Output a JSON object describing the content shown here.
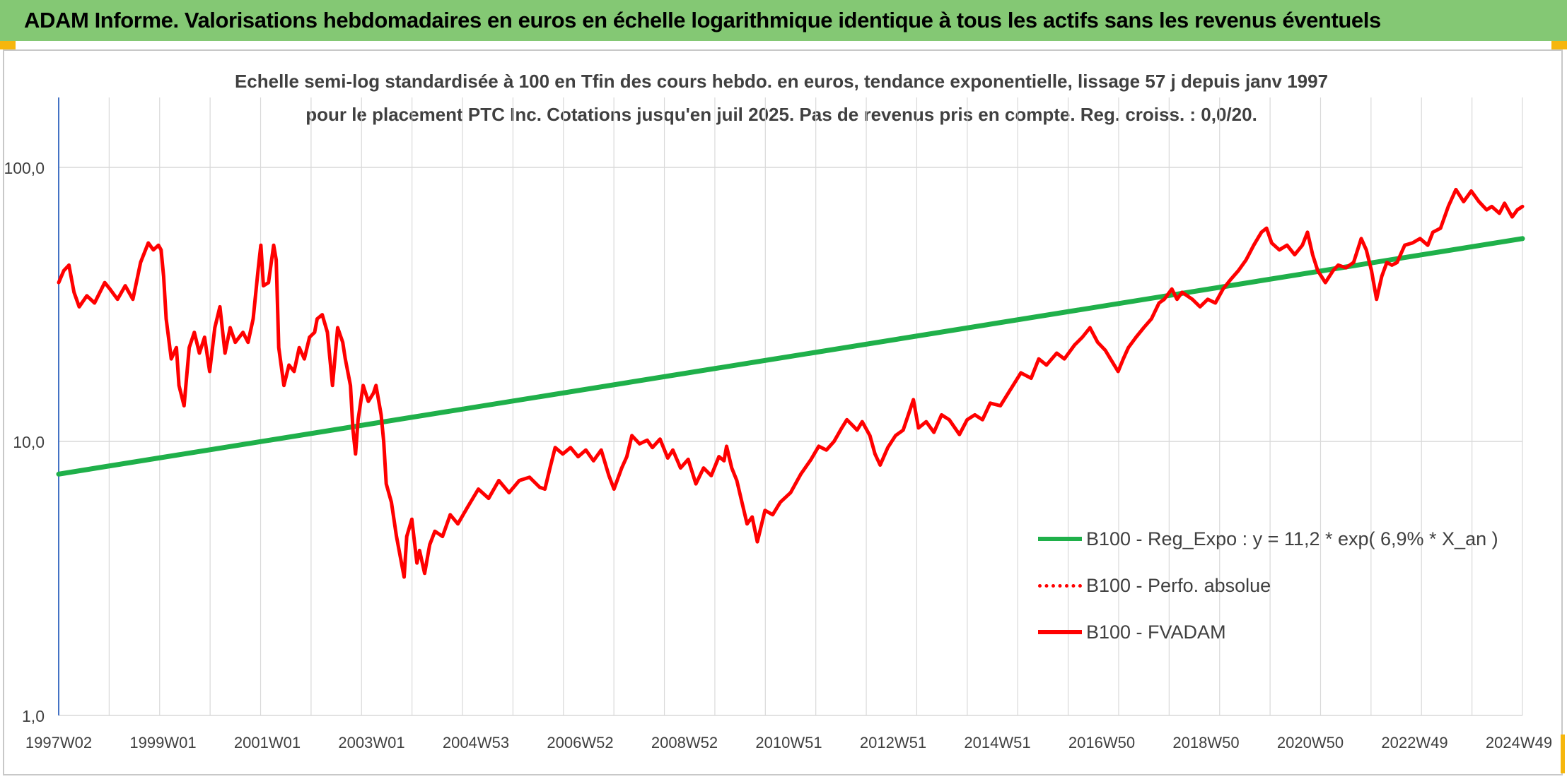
{
  "banner": {
    "title": "ADAM Informe. Valorisations hebdomadaires en euros en échelle logarithmique identique à tous les actifs sans les revenus éventuels"
  },
  "colors": {
    "banner": "#84c874",
    "accent_corner": "#f6b60d",
    "regression": "#1fb04a",
    "fvadam": "#ff0000",
    "grid": "#d9d9d9",
    "text": "#404040"
  },
  "chart_data": {
    "type": "line",
    "title": "Echelle semi-log standardisée à 100 en Tfin des cours hebdo. en euros, tendance exponentielle, lissage 57 j depuis janv 1997 pour le placement PTC Inc. Cotations jusqu'en juil 2025. Pas de revenus pris en compte. Reg. croiss. : 0,0/20.",
    "yscale": "log",
    "ylim": [
      1,
      180
    ],
    "y_ticks": [
      "1,0",
      "10,0",
      "100,0"
    ],
    "x_ticks": [
      "1997W02",
      "1999W01",
      "2001W01",
      "2003W01",
      "2004W53",
      "2006W52",
      "2008W52",
      "2010W51",
      "2012W51",
      "2014W51",
      "2016W50",
      "2018W50",
      "2020W50",
      "2022W49",
      "2024W49"
    ],
    "xlim": [
      1997.0,
      2025.6
    ],
    "grid": true,
    "legend_position": "bottom-right",
    "legend": [
      {
        "label": "B100 - Reg_Expo : y = 11,2 * exp( 6,9% *  X_an )",
        "style": "solid-green"
      },
      {
        "label": "B100 - Perfo. absolue",
        "style": "dotted-red"
      },
      {
        "label": "B100 - FVADAM",
        "style": "solid-red"
      }
    ],
    "series": [
      {
        "name": "B100 - Reg_Expo : y = 11,2 * exp( 6,9% *  X_an )",
        "color": "#1fb04a",
        "points": [
          [
            1997.0,
            7.6
          ],
          [
            2025.6,
            55.0
          ]
        ]
      },
      {
        "name": "B100 - FVADAM",
        "color": "#ff0000",
        "points": [
          [
            1997.0,
            38
          ],
          [
            1997.1,
            42
          ],
          [
            1997.2,
            44
          ],
          [
            1997.3,
            35
          ],
          [
            1997.4,
            31
          ],
          [
            1997.55,
            34
          ],
          [
            1997.7,
            32
          ],
          [
            1997.9,
            38
          ],
          [
            1998.0,
            36
          ],
          [
            1998.15,
            33
          ],
          [
            1998.3,
            37
          ],
          [
            1998.45,
            33
          ],
          [
            1998.6,
            45
          ],
          [
            1998.75,
            53
          ],
          [
            1998.85,
            50
          ],
          [
            1998.95,
            52
          ],
          [
            1999.0,
            50
          ],
          [
            1999.05,
            40
          ],
          [
            1999.1,
            28
          ],
          [
            1999.2,
            20
          ],
          [
            1999.3,
            22
          ],
          [
            1999.35,
            16
          ],
          [
            1999.45,
            13.5
          ],
          [
            1999.55,
            22
          ],
          [
            1999.65,
            25
          ],
          [
            1999.75,
            21
          ],
          [
            1999.85,
            24
          ],
          [
            1999.95,
            18
          ],
          [
            2000.05,
            26
          ],
          [
            2000.15,
            31
          ],
          [
            2000.25,
            21
          ],
          [
            2000.35,
            26
          ],
          [
            2000.45,
            23
          ],
          [
            2000.6,
            25
          ],
          [
            2000.7,
            23
          ],
          [
            2000.8,
            28
          ],
          [
            2000.9,
            43
          ],
          [
            2000.95,
            52
          ],
          [
            2001.0,
            37
          ],
          [
            2001.1,
            38
          ],
          [
            2001.2,
            52
          ],
          [
            2001.25,
            46
          ],
          [
            2001.3,
            22
          ],
          [
            2001.4,
            16
          ],
          [
            2001.5,
            19
          ],
          [
            2001.6,
            18
          ],
          [
            2001.7,
            22
          ],
          [
            2001.8,
            20
          ],
          [
            2001.9,
            24
          ],
          [
            2002.0,
            25
          ],
          [
            2002.05,
            28
          ],
          [
            2002.15,
            29
          ],
          [
            2002.25,
            25
          ],
          [
            2002.35,
            16
          ],
          [
            2002.45,
            26
          ],
          [
            2002.55,
            23
          ],
          [
            2002.6,
            20
          ],
          [
            2002.7,
            16
          ],
          [
            2002.75,
            11
          ],
          [
            2002.8,
            9
          ],
          [
            2002.85,
            12
          ],
          [
            2002.95,
            16
          ],
          [
            2003.05,
            14
          ],
          [
            2003.15,
            15
          ],
          [
            2003.2,
            16
          ],
          [
            2003.3,
            12.5
          ],
          [
            2003.35,
            10
          ],
          [
            2003.4,
            7
          ],
          [
            2003.5,
            6
          ],
          [
            2003.6,
            4.5
          ],
          [
            2003.75,
            3.2
          ],
          [
            2003.8,
            4.5
          ],
          [
            2003.9,
            5.2
          ],
          [
            2004.0,
            3.6
          ],
          [
            2004.05,
            4
          ],
          [
            2004.15,
            3.3
          ],
          [
            2004.25,
            4.2
          ],
          [
            2004.35,
            4.7
          ],
          [
            2004.5,
            4.5
          ],
          [
            2004.65,
            5.4
          ],
          [
            2004.8,
            5
          ],
          [
            2005.0,
            5.8
          ],
          [
            2005.2,
            6.7
          ],
          [
            2005.4,
            6.2
          ],
          [
            2005.6,
            7.2
          ],
          [
            2005.8,
            6.5
          ],
          [
            2006.0,
            7.2
          ],
          [
            2006.2,
            7.4
          ],
          [
            2006.4,
            6.8
          ],
          [
            2006.5,
            6.7
          ],
          [
            2006.6,
            8
          ],
          [
            2006.7,
            9.5
          ],
          [
            2006.85,
            9
          ],
          [
            2007.0,
            9.5
          ],
          [
            2007.15,
            8.8
          ],
          [
            2007.3,
            9.3
          ],
          [
            2007.45,
            8.5
          ],
          [
            2007.6,
            9.3
          ],
          [
            2007.75,
            7.5
          ],
          [
            2007.85,
            6.7
          ],
          [
            2008.0,
            8
          ],
          [
            2008.1,
            8.8
          ],
          [
            2008.2,
            10.5
          ],
          [
            2008.35,
            9.8
          ],
          [
            2008.5,
            10.1
          ],
          [
            2008.6,
            9.5
          ],
          [
            2008.75,
            10.2
          ],
          [
            2008.9,
            8.7
          ],
          [
            2009.0,
            9.3
          ],
          [
            2009.15,
            8
          ],
          [
            2009.3,
            8.6
          ],
          [
            2009.45,
            7
          ],
          [
            2009.6,
            8
          ],
          [
            2009.75,
            7.5
          ],
          [
            2009.9,
            8.8
          ],
          [
            2010.0,
            8.5
          ],
          [
            2010.05,
            9.6
          ],
          [
            2010.15,
            8
          ],
          [
            2010.25,
            7.2
          ],
          [
            2010.35,
            6
          ],
          [
            2010.45,
            5
          ],
          [
            2010.55,
            5.3
          ],
          [
            2010.65,
            4.3
          ],
          [
            2010.8,
            5.6
          ],
          [
            2010.95,
            5.4
          ],
          [
            2011.1,
            6
          ],
          [
            2011.3,
            6.5
          ],
          [
            2011.5,
            7.6
          ],
          [
            2011.7,
            8.6
          ],
          [
            2011.85,
            9.6
          ],
          [
            2012.0,
            9.3
          ],
          [
            2012.15,
            10
          ],
          [
            2012.3,
            11.2
          ],
          [
            2012.4,
            12
          ],
          [
            2012.5,
            11.5
          ],
          [
            2012.6,
            11
          ],
          [
            2012.7,
            11.8
          ],
          [
            2012.85,
            10.5
          ],
          [
            2012.95,
            9
          ],
          [
            2013.05,
            8.2
          ],
          [
            2013.2,
            9.5
          ],
          [
            2013.35,
            10.5
          ],
          [
            2013.5,
            11
          ],
          [
            2013.6,
            12.5
          ],
          [
            2013.7,
            14.2
          ],
          [
            2013.8,
            11.2
          ],
          [
            2013.95,
            11.8
          ],
          [
            2014.1,
            10.8
          ],
          [
            2014.25,
            12.5
          ],
          [
            2014.4,
            12
          ],
          [
            2014.6,
            10.6
          ],
          [
            2014.75,
            12
          ],
          [
            2014.9,
            12.5
          ],
          [
            2015.05,
            12
          ],
          [
            2015.2,
            13.8
          ],
          [
            2015.4,
            13.5
          ],
          [
            2015.6,
            15.5
          ],
          [
            2015.8,
            17.8
          ],
          [
            2016.0,
            17
          ],
          [
            2016.15,
            20
          ],
          [
            2016.3,
            19
          ],
          [
            2016.5,
            21
          ],
          [
            2016.65,
            20
          ],
          [
            2016.85,
            22.5
          ],
          [
            2017.0,
            24
          ],
          [
            2017.15,
            26
          ],
          [
            2017.3,
            23
          ],
          [
            2017.45,
            21.5
          ],
          [
            2017.55,
            20
          ],
          [
            2017.7,
            18
          ],
          [
            2017.8,
            20
          ],
          [
            2017.9,
            22
          ],
          [
            2018.05,
            24
          ],
          [
            2018.2,
            26
          ],
          [
            2018.35,
            28
          ],
          [
            2018.5,
            32
          ],
          [
            2018.6,
            33
          ],
          [
            2018.75,
            36
          ],
          [
            2018.85,
            33
          ],
          [
            2018.95,
            35
          ],
          [
            2019.05,
            34
          ],
          [
            2019.15,
            33
          ],
          [
            2019.3,
            31
          ],
          [
            2019.45,
            33
          ],
          [
            2019.6,
            32
          ],
          [
            2019.75,
            36
          ],
          [
            2019.9,
            39
          ],
          [
            2020.05,
            42
          ],
          [
            2020.2,
            46
          ],
          [
            2020.35,
            52
          ],
          [
            2020.5,
            58
          ],
          [
            2020.6,
            60
          ],
          [
            2020.7,
            53
          ],
          [
            2020.85,
            50
          ],
          [
            2021.0,
            52
          ],
          [
            2021.15,
            48
          ],
          [
            2021.3,
            52
          ],
          [
            2021.4,
            58
          ],
          [
            2021.5,
            48
          ],
          [
            2021.6,
            42
          ],
          [
            2021.75,
            38
          ],
          [
            2021.9,
            42
          ],
          [
            2022.0,
            44
          ],
          [
            2022.15,
            43
          ],
          [
            2022.3,
            45
          ],
          [
            2022.45,
            55
          ],
          [
            2022.55,
            50
          ],
          [
            2022.65,
            42
          ],
          [
            2022.75,
            33
          ],
          [
            2022.85,
            40
          ],
          [
            2022.95,
            45
          ],
          [
            2023.05,
            44
          ],
          [
            2023.15,
            45
          ],
          [
            2023.3,
            52
          ],
          [
            2023.45,
            53
          ],
          [
            2023.6,
            55
          ],
          [
            2023.75,
            52
          ],
          [
            2023.85,
            58
          ],
          [
            2024.0,
            60
          ],
          [
            2024.15,
            72
          ],
          [
            2024.3,
            83
          ],
          [
            2024.45,
            75
          ],
          [
            2024.6,
            82
          ],
          [
            2024.75,
            75
          ],
          [
            2024.9,
            70
          ],
          [
            2025.0,
            72
          ],
          [
            2025.15,
            68
          ],
          [
            2025.25,
            74
          ],
          [
            2025.4,
            66
          ],
          [
            2025.5,
            70
          ],
          [
            2025.6,
            72
          ]
        ]
      }
    ]
  }
}
